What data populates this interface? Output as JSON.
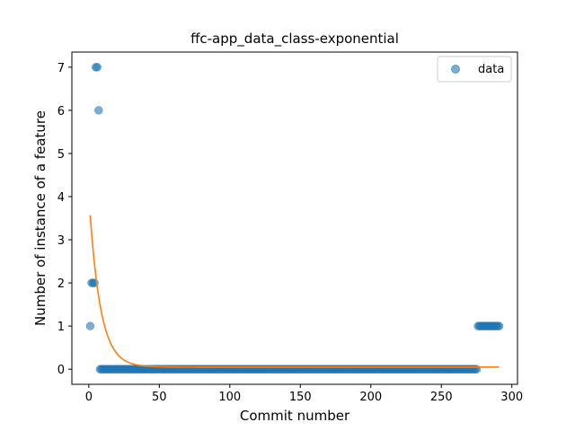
{
  "chart_data": {
    "type": "scatter",
    "title": "ffc-app_data_class-exponential",
    "xlabel": "Commit number",
    "ylabel": "Number of instance of a feature",
    "xlim": [
      -12,
      304
    ],
    "ylim": [
      -0.35,
      7.35
    ],
    "xticks": [
      0,
      50,
      100,
      150,
      200,
      250,
      300
    ],
    "yticks": [
      0,
      1,
      2,
      3,
      4,
      5,
      6,
      7
    ],
    "legend": {
      "position": "top-right",
      "entries": [
        "data"
      ]
    },
    "grid": false,
    "series": [
      {
        "name": "data",
        "kind": "points",
        "color": "#1f77b4",
        "alpha": 0.6,
        "points": [
          [
            1,
            1
          ],
          [
            2,
            2
          ],
          [
            3,
            2
          ],
          [
            4,
            2
          ],
          [
            5,
            7
          ],
          [
            6,
            7
          ],
          [
            7,
            6
          ],
          {
            "from": 8,
            "to": 275,
            "y": 0
          },
          {
            "from": 276,
            "to": 291,
            "y": 1
          }
        ]
      },
      {
        "kind": "fit-curve",
        "color": "#ff7f0e",
        "x_range": [
          1,
          291
        ],
        "model": "exponential",
        "a": 3.52,
        "b": 0.128,
        "c": 0.05
      }
    ]
  }
}
